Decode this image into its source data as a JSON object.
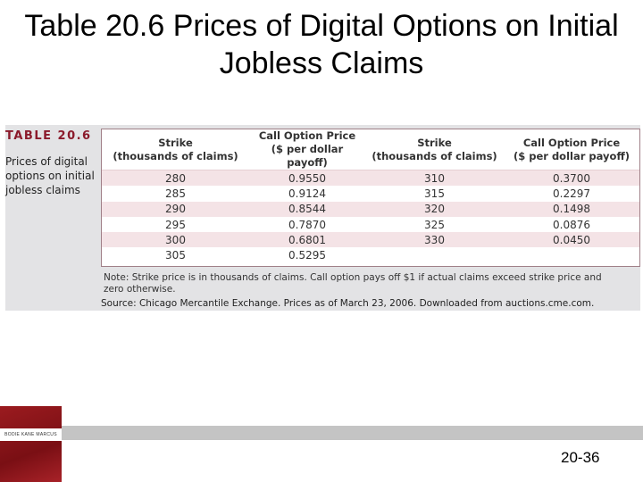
{
  "slide": {
    "title": "Table 20.6 Prices of Digital Options on Initial Jobless Claims",
    "page_number": "20-36"
  },
  "table": {
    "label": "TABLE 20.6",
    "description": "Prices of digital options on initial jobless claims",
    "headers": [
      {
        "line1": "Strike",
        "line2": "(thousands of claims)"
      },
      {
        "line1": "Call Option Price",
        "line2": "($ per dollar payoff)"
      },
      {
        "line1": "Strike",
        "line2": "(thousands of claims)"
      },
      {
        "line1": "Call Option Price",
        "line2": "($ per dollar payoff)"
      }
    ],
    "rows": [
      [
        "280",
        "0.9550",
        "310",
        "0.3700"
      ],
      [
        "285",
        "0.9124",
        "315",
        "0.2297"
      ],
      [
        "290",
        "0.8544",
        "320",
        "0.1498"
      ],
      [
        "295",
        "0.7870",
        "325",
        "0.0876"
      ],
      [
        "300",
        "0.6801",
        "330",
        "0.0450"
      ],
      [
        "305",
        "0.5295",
        "",
        ""
      ]
    ],
    "note": "Note: Strike price is in thousands of claims. Call option pays off $1 if actual claims exceed strike price and zero otherwise.",
    "source": "Source: Chicago Mercantile Exchange. Prices as of March 23, 2006. Downloaded from auctions.cme.com."
  },
  "footer": {
    "book_cover_text": "BODIE KANE MARCUS"
  },
  "colors": {
    "accent": "#8b1a2b",
    "row_stripe": "#f4e3e6",
    "panel": "#e3e3e5"
  }
}
